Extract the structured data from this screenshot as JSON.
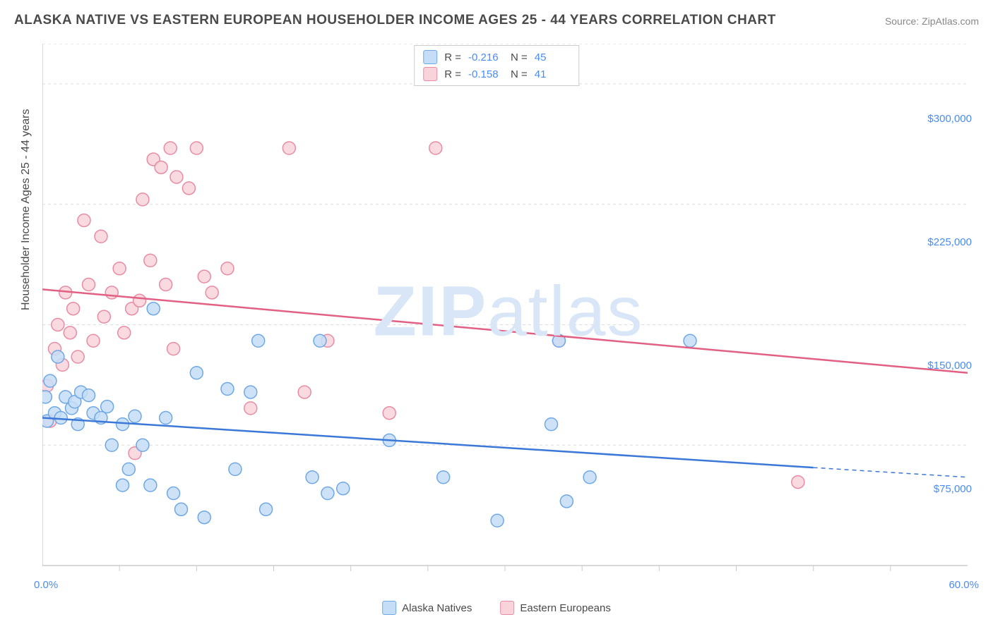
{
  "title": "ALASKA NATIVE VS EASTERN EUROPEAN HOUSEHOLDER INCOME AGES 25 - 44 YEARS CORRELATION CHART",
  "source_label": "Source: ZipAtlas.com",
  "watermark": "ZIPatlas",
  "y_axis_label": "Householder Income Ages 25 - 44 years",
  "chart": {
    "type": "scatter",
    "xlim": [
      0,
      60
    ],
    "ylim": [
      0,
      325000
    ],
    "x_ticks_minor": [
      5,
      10,
      15,
      20,
      25,
      30,
      35,
      40,
      45,
      50,
      55
    ],
    "x_tick_labels": [
      {
        "pos": 0,
        "label": "0.0%"
      },
      {
        "pos": 60,
        "label": "60.0%"
      }
    ],
    "y_ticks": [
      75000,
      150000,
      225000,
      300000
    ],
    "y_tick_labels": [
      "$75,000",
      "$150,000",
      "$225,000",
      "$300,000"
    ],
    "y_grid_dashed": [
      0,
      75000,
      150000,
      225000,
      300000,
      325000
    ],
    "background_color": "#ffffff",
    "grid_color": "#dddddd",
    "axis_color": "#cccccc",
    "marker_radius": 9,
    "marker_stroke_width": 1.5,
    "trend_line_width": 2.5,
    "series": [
      {
        "name": "Alaska Natives",
        "legend_label": "Alaska Natives",
        "fill": "#c5ddf6",
        "stroke": "#6fa8e6",
        "line_color": "#3b78d8",
        "R": "-0.216",
        "N": "45",
        "trend": {
          "x1": 0,
          "y1": 92000,
          "x2": 50,
          "y2": 61000,
          "dash_from_x": 50,
          "dash_to_x": 60,
          "dash_y2": 55000
        },
        "points": [
          [
            0.3,
            90000
          ],
          [
            0.5,
            115000
          ],
          [
            0.8,
            95000
          ],
          [
            1.0,
            130000
          ],
          [
            1.2,
            92000
          ],
          [
            1.5,
            105000
          ],
          [
            1.9,
            98000
          ],
          [
            2.1,
            102000
          ],
          [
            2.3,
            88000
          ],
          [
            2.5,
            108000
          ],
          [
            3.0,
            106000
          ],
          [
            3.3,
            95000
          ],
          [
            3.8,
            92000
          ],
          [
            4.2,
            99000
          ],
          [
            4.5,
            75000
          ],
          [
            5.2,
            88000
          ],
          [
            5.6,
            60000
          ],
          [
            5.2,
            50000
          ],
          [
            6.0,
            93000
          ],
          [
            6.5,
            75000
          ],
          [
            7.0,
            50000
          ],
          [
            7.2,
            160000
          ],
          [
            8.0,
            92000
          ],
          [
            8.5,
            45000
          ],
          [
            9.0,
            35000
          ],
          [
            10.0,
            120000
          ],
          [
            10.5,
            30000
          ],
          [
            12.0,
            110000
          ],
          [
            12.5,
            60000
          ],
          [
            13.5,
            108000
          ],
          [
            14.0,
            140000
          ],
          [
            14.5,
            35000
          ],
          [
            17.5,
            55000
          ],
          [
            18.0,
            140000
          ],
          [
            18.5,
            45000
          ],
          [
            19.5,
            48000
          ],
          [
            22.5,
            78000
          ],
          [
            26.0,
            55000
          ],
          [
            29.5,
            28000
          ],
          [
            33.0,
            88000
          ],
          [
            34.0,
            40000
          ],
          [
            35.5,
            55000
          ],
          [
            42.0,
            140000
          ],
          [
            33.5,
            140000
          ],
          [
            0.2,
            105000
          ]
        ]
      },
      {
        "name": "Eastern Europeans",
        "legend_label": "Eastern Europeans",
        "fill": "#f9d3dc",
        "stroke": "#e98ba3",
        "line_color": "#e26083",
        "R": "-0.158",
        "N": "41",
        "trend": {
          "x1": 0,
          "y1": 172000,
          "x2": 60,
          "y2": 120000
        },
        "points": [
          [
            0.3,
            112000
          ],
          [
            0.5,
            90000
          ],
          [
            0.8,
            135000
          ],
          [
            1.0,
            150000
          ],
          [
            1.3,
            125000
          ],
          [
            1.5,
            170000
          ],
          [
            1.8,
            145000
          ],
          [
            2.0,
            160000
          ],
          [
            2.3,
            130000
          ],
          [
            2.7,
            215000
          ],
          [
            3.0,
            175000
          ],
          [
            3.3,
            140000
          ],
          [
            3.8,
            205000
          ],
          [
            4.0,
            155000
          ],
          [
            4.5,
            170000
          ],
          [
            5.0,
            185000
          ],
          [
            5.3,
            145000
          ],
          [
            5.8,
            160000
          ],
          [
            6.3,
            165000
          ],
          [
            6.5,
            228000
          ],
          [
            7.0,
            190000
          ],
          [
            7.2,
            253000
          ],
          [
            7.7,
            248000
          ],
          [
            8.0,
            175000
          ],
          [
            8.3,
            260000
          ],
          [
            8.5,
            135000
          ],
          [
            8.7,
            242000
          ],
          [
            9.5,
            235000
          ],
          [
            10.0,
            260000
          ],
          [
            10.5,
            180000
          ],
          [
            11.0,
            170000
          ],
          [
            6.0,
            70000
          ],
          [
            12.0,
            185000
          ],
          [
            13.5,
            98000
          ],
          [
            16.0,
            260000
          ],
          [
            17.0,
            108000
          ],
          [
            18.5,
            140000
          ],
          [
            22.5,
            95000
          ],
          [
            25.5,
            260000
          ],
          [
            33.5,
            140000
          ],
          [
            49.0,
            52000
          ]
        ]
      }
    ]
  },
  "legend": {
    "items": [
      {
        "label": "Alaska Natives",
        "fill": "#c5ddf6",
        "stroke": "#6fa8e6"
      },
      {
        "label": "Eastern Europeans",
        "fill": "#f9d3dc",
        "stroke": "#e98ba3"
      }
    ]
  },
  "colors": {
    "text": "#4a4a4a",
    "tick": "#4a8cf5",
    "source": "#888888"
  }
}
